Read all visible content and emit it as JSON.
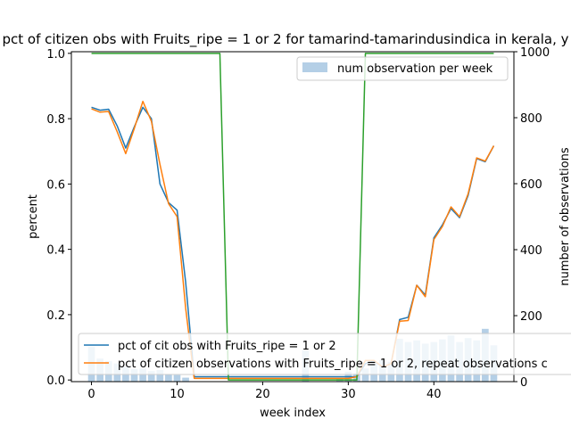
{
  "chart_data": {
    "type": "line",
    "title": "pct of citizen obs with Fruits_ripe = 1 or 2 for tamarind-tamarindusindica in kerala, y",
    "xlabel": "week index",
    "ylabel": "percent",
    "y2label": "number of observations",
    "xlim": [
      -2.35,
      49.35
    ],
    "ylim": [
      -0.005,
      1.005
    ],
    "y2lim": [
      0,
      1000
    ],
    "xticks": [
      "0",
      "10",
      "20",
      "30",
      "40"
    ],
    "yticks": [
      "0.0",
      "0.2",
      "0.4",
      "0.6",
      "0.8",
      "1.0"
    ],
    "y2ticks": [
      "0",
      "200",
      "400",
      "600",
      "800",
      "1000"
    ],
    "x": [
      0,
      1,
      2,
      3,
      4,
      5,
      6,
      7,
      8,
      9,
      10,
      11,
      12,
      13,
      14,
      15,
      16,
      17,
      18,
      19,
      20,
      21,
      22,
      23,
      24,
      25,
      26,
      27,
      28,
      29,
      30,
      31,
      32,
      33,
      34,
      35,
      36,
      37,
      38,
      39,
      40,
      41,
      42,
      43,
      44,
      45,
      46,
      47
    ],
    "series": [
      {
        "name": "pct of cit obs with Fruits_ripe = 1 or 2",
        "color": "#1f77b4",
        "values": [
          0.835,
          0.826,
          0.829,
          0.778,
          0.71,
          0.775,
          0.835,
          0.8,
          0.6,
          0.543,
          0.52,
          0.3,
          0.01,
          0.01,
          0.01,
          0.01,
          0.01,
          0.01,
          0.01,
          0.01,
          0.01,
          0.01,
          0.01,
          0.01,
          0.01,
          0.01,
          0.01,
          0.01,
          0.01,
          0.01,
          0.01,
          0.01,
          0.05,
          0.058,
          0.04,
          0.05,
          0.185,
          0.192,
          0.29,
          0.26,
          0.435,
          0.475,
          0.525,
          0.497,
          0.565,
          0.678,
          0.668,
          0.717
        ]
      },
      {
        "name": "pct of citizen observations with Fruits_ripe = 1 or 2, repeat observations c",
        "color": "#ff7f0e",
        "values": [
          0.83,
          0.82,
          0.822,
          0.76,
          0.693,
          0.77,
          0.853,
          0.792,
          0.66,
          0.54,
          0.5,
          0.22,
          0.005,
          0.005,
          0.005,
          0.005,
          0.005,
          0.005,
          0.005,
          0.005,
          0.005,
          0.005,
          0.005,
          0.005,
          0.005,
          0.005,
          0.005,
          0.005,
          0.005,
          0.005,
          0.005,
          0.01,
          0.06,
          0.06,
          0.04,
          0.05,
          0.18,
          0.182,
          0.29,
          0.255,
          0.43,
          0.47,
          0.53,
          0.5,
          0.57,
          0.68,
          0.67,
          0.717
        ]
      },
      {
        "name": "",
        "color": "#2ca02c",
        "values": [
          1,
          1,
          1,
          1,
          1,
          1,
          1,
          1,
          1,
          1,
          1,
          1,
          1,
          1,
          1,
          1,
          0,
          0,
          0,
          0,
          0,
          0,
          0,
          0,
          0,
          0,
          0,
          0,
          0,
          0,
          0,
          0,
          1,
          1,
          1,
          1,
          1,
          1,
          1,
          1,
          1,
          1,
          1,
          1,
          1,
          1,
          1,
          1
        ]
      }
    ],
    "bars": {
      "name": "num observation per week",
      "axis": "right",
      "color": "#b4cfe6",
      "values": [
        105,
        70,
        62,
        55,
        45,
        38,
        40,
        32,
        35,
        22,
        20,
        12,
        0,
        0,
        0,
        0,
        0,
        0,
        0,
        0,
        0,
        0,
        0,
        0,
        0,
        95,
        0,
        0,
        0,
        10,
        30,
        25,
        40,
        55,
        65,
        60,
        130,
        120,
        125,
        115,
        120,
        128,
        140,
        120,
        132,
        125,
        160,
        110
      ]
    },
    "legend_upper": {
      "placement": "top-right"
    },
    "legend_lower": {
      "placement": "bottom-left"
    }
  }
}
